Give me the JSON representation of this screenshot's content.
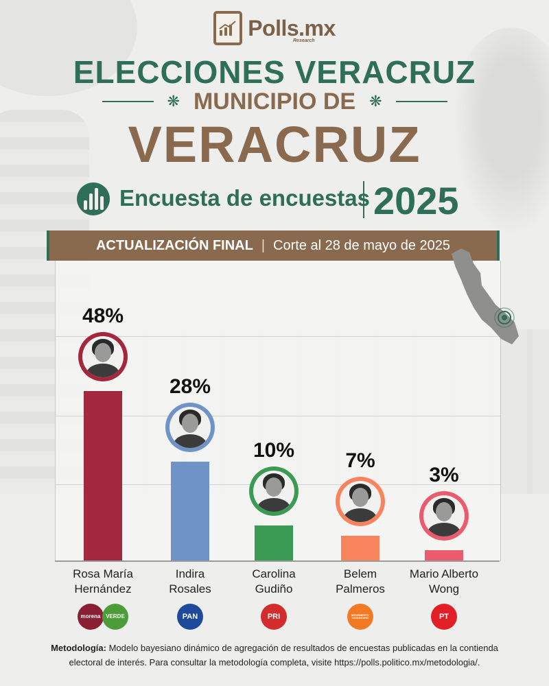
{
  "header": {
    "logo_text": "Polls.mx",
    "logo_sub": "Research",
    "title_line1": "ELECCIONES VERACRUZ",
    "title_line2": "MUNICIPIO DE",
    "title_line3": "VERACRUZ",
    "survey_label": "Encuesta de encuestas",
    "year": "2025"
  },
  "banner": {
    "left": "ACTUALIZACIÓN FINAL",
    "separator": "|",
    "right": "Corte al 28 de mayo de 2025"
  },
  "colors": {
    "green": "#2f6e58",
    "brown": "#8a6a4e"
  },
  "chart_data": {
    "type": "bar",
    "categories": [
      "Rosa María Hernández",
      "Indira Rosales",
      "Carolina Gudiño",
      "Belem Palmeros",
      "Mario Alberto Wong"
    ],
    "values": [
      48,
      28,
      10,
      7,
      3
    ],
    "value_labels": [
      "48%",
      "28%",
      "10%",
      "7%",
      "3%"
    ],
    "colors": [
      "#a3283f",
      "#6f93c7",
      "#3b9a54",
      "#f7845c",
      "#ea5b6e"
    ],
    "name_lines": [
      [
        "Rosa María",
        "Hernández"
      ],
      [
        "Indira",
        "Rosales"
      ],
      [
        "Carolina",
        "Gudiño"
      ],
      [
        "Belem",
        "Palmeros"
      ],
      [
        "Mario Alberto",
        "Wong"
      ]
    ],
    "parties": [
      [
        {
          "label": "morena",
          "color": "#8a1f33",
          "icon": "morena-logo"
        },
        {
          "label": "VERDE",
          "color": "#4c9d3a",
          "icon": "verde-logo"
        }
      ],
      [
        {
          "label": "PAN",
          "color": "#1f4a9c",
          "icon": "pan-logo"
        }
      ],
      [
        {
          "label": "PRI",
          "color": "#d22c2c",
          "icon": "pri-logo"
        }
      ],
      [
        {
          "label": "MOVIMIENTO CIUDADANO",
          "color": "#f37a25",
          "icon": "mc-logo"
        }
      ],
      [
        {
          "label": "PT",
          "color": "#e21f26",
          "icon": "pt-logo"
        }
      ]
    ],
    "ylim": [
      0,
      50
    ],
    "grid": true,
    "title": "",
    "xlabel": "",
    "ylabel": ""
  },
  "methodology": {
    "label": "Metodología:",
    "text": "Modelo bayesiano dinámico de agregación de resultados de encuestas publicadas en la contienda electoral de interés. Para consultar la metodología completa, visite https://polls.politico.mx/metodologia/."
  }
}
